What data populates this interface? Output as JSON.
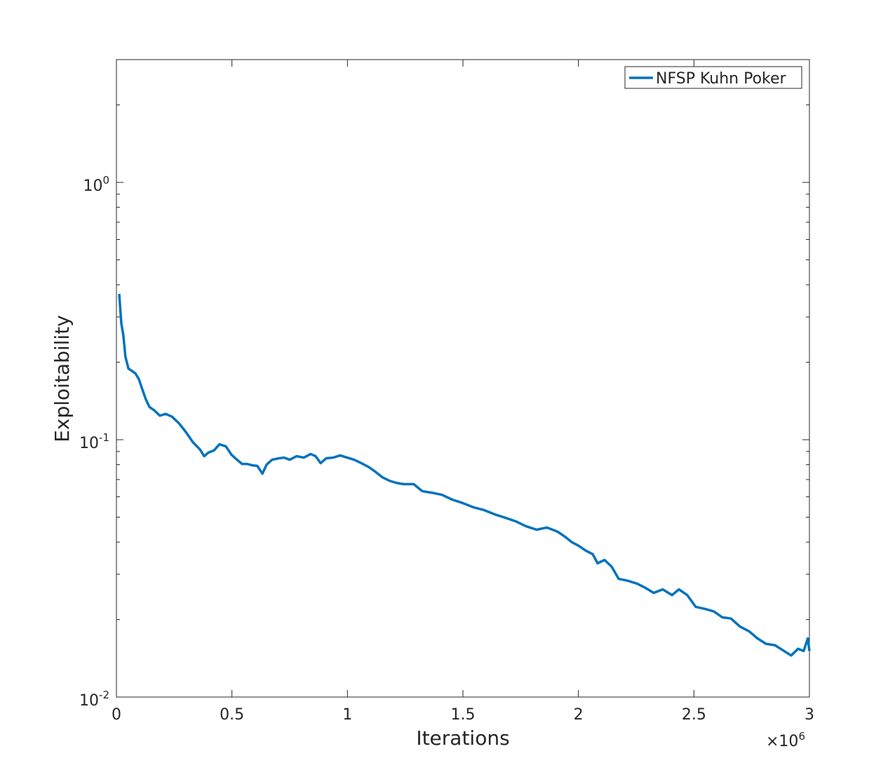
{
  "chart_data": {
    "type": "line",
    "x_label": "Iterations",
    "y_label": "Exploitability",
    "x_multiplier": {
      "label": "×10",
      "exponent": "6"
    },
    "xlim": [
      0,
      3
    ],
    "xticks": [
      0,
      0.5,
      1,
      1.5,
      2,
      2.5,
      3
    ],
    "ylim": [
      0.01,
      3
    ],
    "y_log_scale": true,
    "yticks": [
      {
        "value": 0.01,
        "label": "10",
        "exponent": "-2"
      },
      {
        "value": 0.1,
        "label": "10",
        "exponent": "-1"
      },
      {
        "value": 1,
        "label": "10",
        "exponent": "0"
      }
    ],
    "minor_yticks": [
      0.02,
      0.03,
      0.04,
      0.05,
      0.06,
      0.07,
      0.08,
      0.09,
      0.2,
      0.3,
      0.4,
      0.5,
      0.6,
      0.7,
      0.8,
      0.9,
      2,
      3
    ],
    "grid": false,
    "legend_position": "top-right",
    "series": [
      {
        "name": "NFSP Kuhn Poker",
        "color": "#0072bd",
        "x": [
          0.012,
          0.021,
          0.03,
          0.039,
          0.052,
          0.067,
          0.082,
          0.097,
          0.112,
          0.128,
          0.143,
          0.164,
          0.188,
          0.213,
          0.24,
          0.27,
          0.301,
          0.331,
          0.361,
          0.38,
          0.398,
          0.422,
          0.446,
          0.474,
          0.498,
          0.522,
          0.544,
          0.565,
          0.589,
          0.61,
          0.632,
          0.65,
          0.674,
          0.704,
          0.726,
          0.75,
          0.78,
          0.811,
          0.841,
          0.862,
          0.884,
          0.908,
          0.938,
          0.969,
          0.999,
          1.029,
          1.06,
          1.09,
          1.12,
          1.151,
          1.181,
          1.211,
          1.242,
          1.287,
          1.324,
          1.363,
          1.409,
          1.454,
          1.5,
          1.546,
          1.591,
          1.637,
          1.682,
          1.728,
          1.773,
          1.819,
          1.864,
          1.91,
          1.94,
          1.971,
          2.001,
          2.031,
          2.062,
          2.083,
          2.113,
          2.144,
          2.174,
          2.214,
          2.253,
          2.289,
          2.326,
          2.365,
          2.405,
          2.435,
          2.471,
          2.508,
          2.548,
          2.587,
          2.623,
          2.66,
          2.699,
          2.739,
          2.775,
          2.812,
          2.851,
          2.89,
          2.921,
          2.951,
          2.975,
          2.993,
          3.0
        ],
        "values": [
          0.369,
          0.284,
          0.254,
          0.21,
          0.189,
          0.185,
          0.181,
          0.172,
          0.157,
          0.143,
          0.134,
          0.13,
          0.124,
          0.126,
          0.123,
          0.116,
          0.107,
          0.0978,
          0.0918,
          0.0863,
          0.0891,
          0.0908,
          0.096,
          0.0942,
          0.0874,
          0.0836,
          0.0805,
          0.0805,
          0.0795,
          0.0791,
          0.0738,
          0.08,
          0.0836,
          0.0847,
          0.0852,
          0.0836,
          0.0863,
          0.0852,
          0.088,
          0.0863,
          0.0811,
          0.0847,
          0.0852,
          0.0869,
          0.0852,
          0.0836,
          0.0811,
          0.0785,
          0.0752,
          0.0715,
          0.0693,
          0.068,
          0.0672,
          0.0672,
          0.0631,
          0.0623,
          0.0611,
          0.0585,
          0.0567,
          0.0546,
          0.0533,
          0.0513,
          0.0498,
          0.0482,
          0.0461,
          0.0447,
          0.0456,
          0.0439,
          0.0421,
          0.04,
          0.0387,
          0.0371,
          0.0359,
          0.0331,
          0.0341,
          0.0321,
          0.0288,
          0.0283,
          0.0276,
          0.0266,
          0.0254,
          0.0262,
          0.0249,
          0.0262,
          0.0249,
          0.0224,
          0.022,
          0.0215,
          0.0204,
          0.0202,
          0.0188,
          0.018,
          0.0169,
          0.0161,
          0.0159,
          0.0151,
          0.0145,
          0.0154,
          0.0151,
          0.0169,
          0.0151
        ]
      }
    ]
  }
}
